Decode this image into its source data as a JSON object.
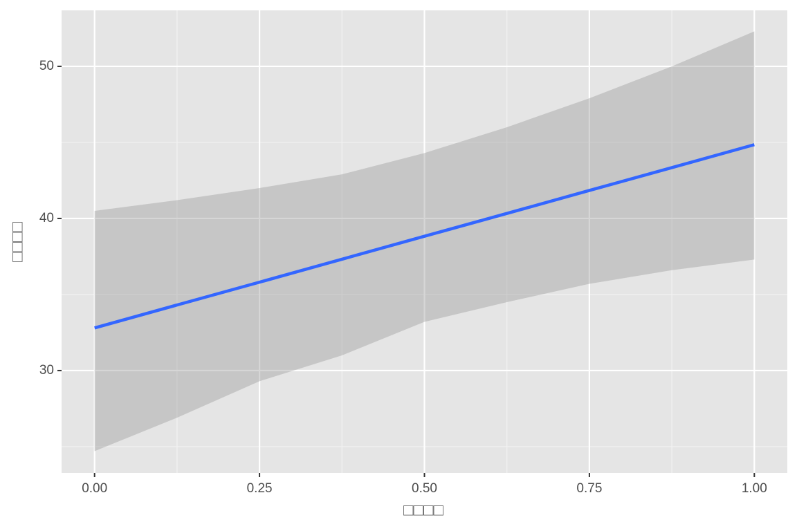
{
  "chart_data": {
    "type": "line",
    "x_label": "□□□□",
    "y_label": "□□□□",
    "x": [
      0,
      0.125,
      0.25,
      0.375,
      0.5,
      0.625,
      0.75,
      0.875,
      1
    ],
    "values": [
      32.8,
      34.31,
      35.81,
      37.32,
      38.83,
      40.33,
      41.84,
      43.34,
      44.85
    ],
    "color": "#3366ff",
    "band": {
      "lower": [
        24.7,
        26.9,
        29.3,
        31.0,
        33.2,
        34.5,
        35.7,
        36.6,
        37.3
      ],
      "upper": [
        40.5,
        41.2,
        42.0,
        42.9,
        44.3,
        46.0,
        47.9,
        50.0,
        52.3
      ],
      "color": "#999999"
    },
    "xlim": [
      -0.05,
      1.05
    ],
    "ylim": [
      23.27,
      53.68
    ],
    "xticks": [
      {
        "value": 0,
        "label": "0.00"
      },
      0.25,
      {
        "value": 0.5,
        "label": "0.50"
      },
      0.75,
      {
        "value": 1,
        "label": "1.00"
      }
    ],
    "yticks": [
      30,
      40,
      50
    ],
    "minor_xticks": [
      0.125,
      0.375,
      0.625,
      0.875
    ],
    "minor_yticks": [
      25,
      35,
      45
    ],
    "grid": true
  }
}
